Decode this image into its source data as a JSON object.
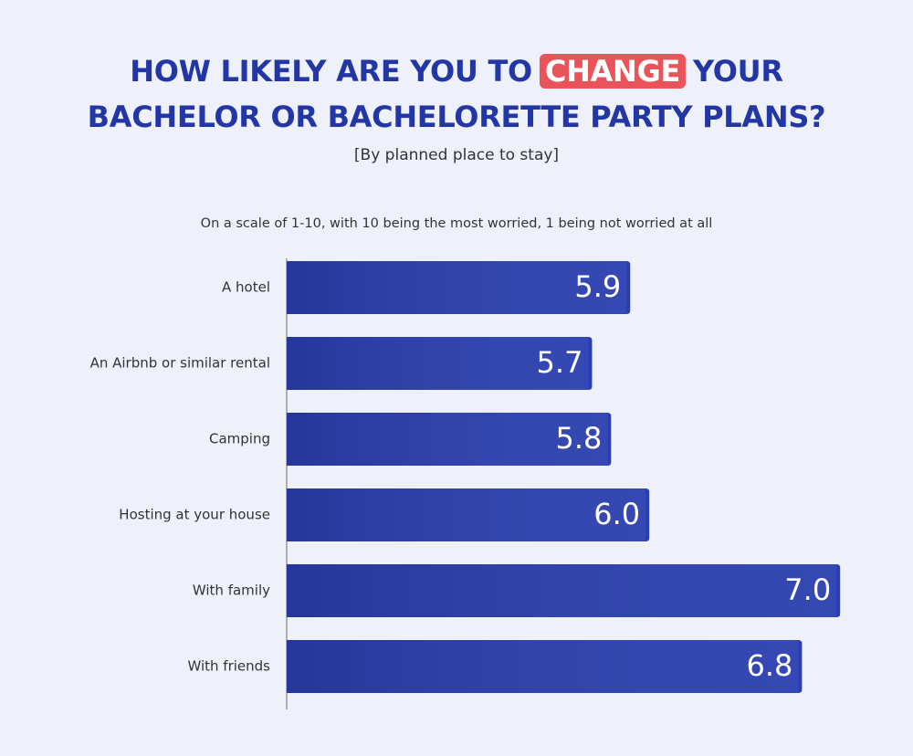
{
  "chart_data": {
    "type": "hbar",
    "title_lines": [
      [
        {
          "text": "HOW LIKELY ARE YOU TO"
        },
        {
          "text": "CHANGE",
          "highlight": true
        },
        {
          "text": "YOUR"
        }
      ],
      [
        {
          "text": "BACHELOR OR BACHELORETTE PARTY PLANS?"
        }
      ]
    ],
    "subtitle": "[By planned place to stay]",
    "note": "On a scale of 1-10, with 10 being the most worried, 1 being not worried at all",
    "categories": [
      "A hotel",
      "An Airbnb or similar rental",
      "Camping",
      "Hosting at your house",
      "With family",
      "With friends"
    ],
    "values": [
      5.9,
      5.7,
      5.8,
      6.0,
      7.0,
      6.8
    ],
    "value_labels": [
      "5.9",
      "5.7",
      "5.8",
      "6.0",
      "7.0",
      "6.8"
    ],
    "color": "#2a3eaf",
    "xlim": [
      4.1,
      7.2
    ]
  }
}
